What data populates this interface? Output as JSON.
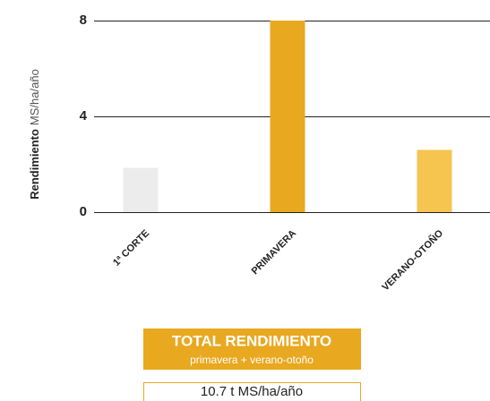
{
  "chart_data": {
    "type": "bar",
    "ylabel": {
      "bold": "Rendimiento",
      "rest": "MS/ha/año"
    },
    "categories": [
      "1ª CORTE",
      "PRIMAVERA",
      "VERANO-OTOÑO"
    ],
    "values": [
      1.85,
      8,
      2.6
    ],
    "colors": [
      "#ececec",
      "#e8a820",
      "#f5c550"
    ],
    "ylim": [
      0,
      8
    ],
    "yticks": [
      0,
      4,
      8
    ],
    "grid": true,
    "summary": {
      "title": "TOTAL RENDIMIENTO",
      "subtitle": "primavera + verano-otoño",
      "value": "10.7 t MS/ha/año"
    }
  }
}
